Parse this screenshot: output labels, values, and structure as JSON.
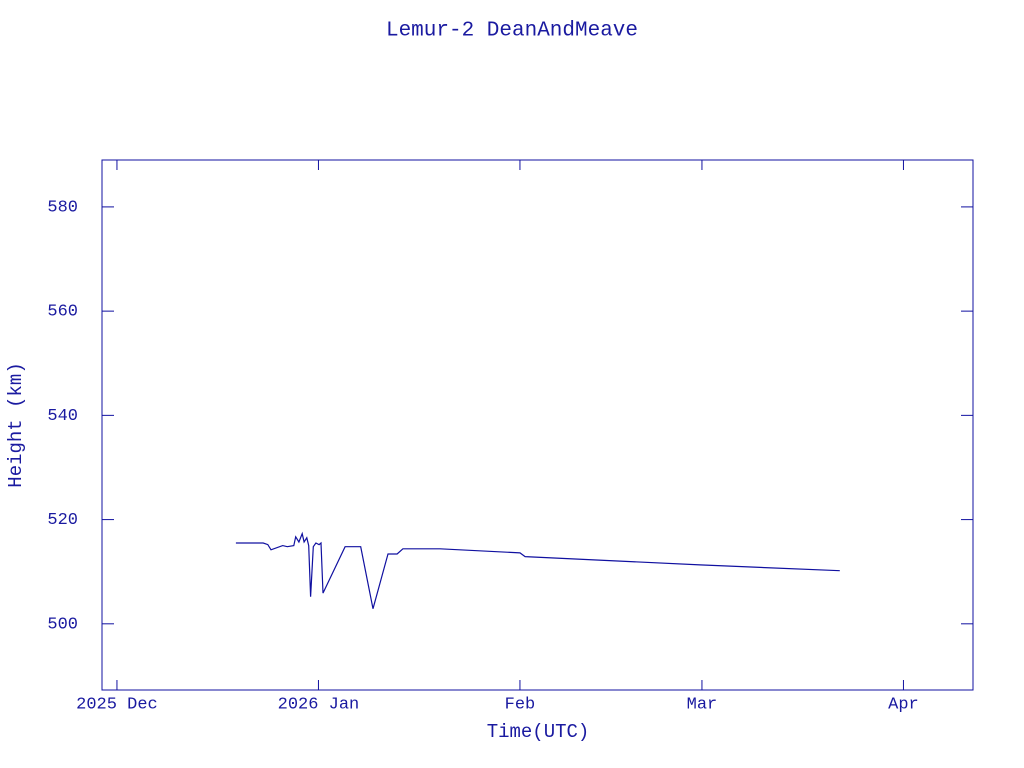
{
  "chart_data": {
    "type": "line",
    "title": "Lemur-2 DeanAndMeave",
    "x_label": "Time(UTC)",
    "y_label": "Height (km)",
    "color": "#1010a0",
    "xlim": [
      -2.3,
      131.7
    ],
    "xticks": [
      {
        "value": 0,
        "label": "2025 Dec"
      },
      {
        "value": 31,
        "label": "2026 Jan"
      },
      {
        "value": 62,
        "label": "Feb"
      },
      {
        "value": 90,
        "label": "Mar"
      },
      {
        "value": 121,
        "label": "Apr"
      }
    ],
    "ylim": [
      487.3,
      589.0
    ],
    "yticks": [
      500,
      520,
      540,
      560,
      580
    ],
    "x": [
      18.3,
      22.5,
      23.2,
      23.7,
      25.5,
      26.2,
      27.2,
      27.5,
      28.0,
      28.5,
      28.8,
      29.2,
      29.5,
      29.8,
      30.2,
      30.6,
      31.1,
      31.4,
      31.7,
      35.1,
      37.5,
      39.4,
      41.7,
      43.1,
      44.0,
      49.7,
      62.0,
      62.8,
      89.7,
      111.2
    ],
    "values": [
      515.5,
      515.5,
      515.2,
      514.2,
      515.0,
      514.8,
      515.0,
      516.7,
      515.7,
      517.3,
      515.7,
      516.5,
      515.0,
      505.2,
      514.8,
      515.5,
      515.2,
      515.5,
      505.9,
      514.8,
      514.8,
      502.9,
      513.4,
      513.4,
      514.4,
      514.4,
      513.6,
      512.9,
      511.3,
      510.2
    ]
  }
}
